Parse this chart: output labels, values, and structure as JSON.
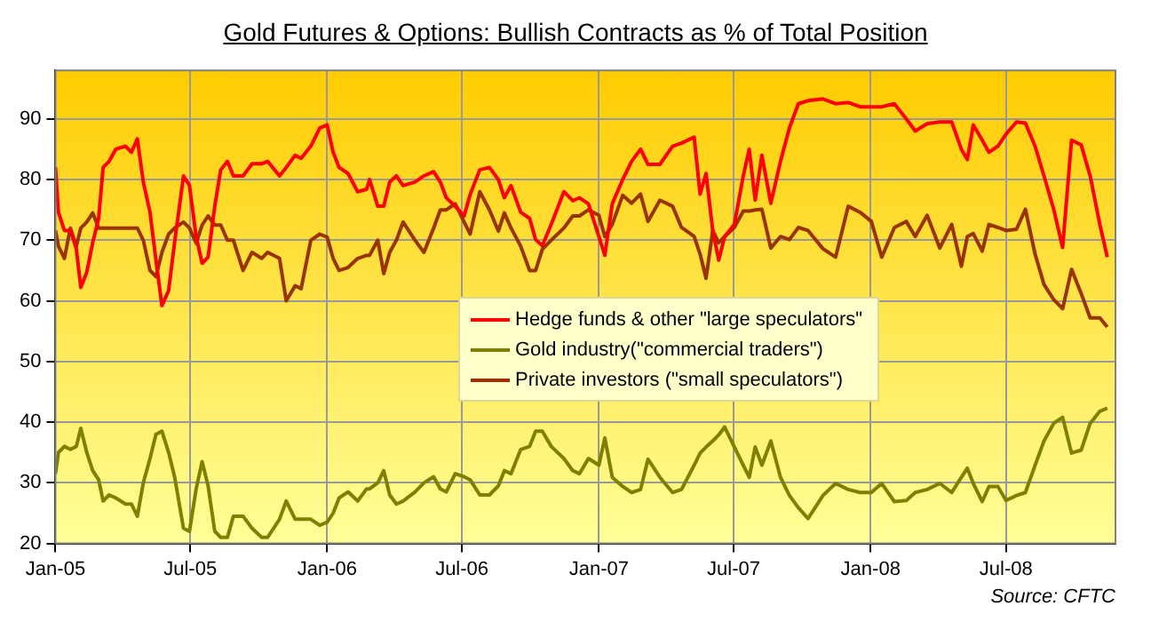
{
  "chart_data": {
    "type": "line",
    "title": "Gold Futures & Options: Bullish Contracts as % of Total Position",
    "x": [
      "2005-01-01",
      "2005-01-05",
      "2005-01-13",
      "2005-01-21",
      "2005-01-29",
      "2005-02-04",
      "2005-02-12",
      "2005-02-20",
      "2005-02-28",
      "2005-03-06",
      "2005-03-14",
      "2005-03-23",
      "2005-04-05",
      "2005-04-13",
      "2005-04-21",
      "2005-04-29",
      "2005-05-08",
      "2005-05-16",
      "2005-05-24",
      "2005-06-02",
      "2005-06-10",
      "2005-06-22",
      "2005-06-30",
      "2005-07-09",
      "2005-07-17",
      "2005-07-25",
      "2005-08-03",
      "2005-08-11",
      "2005-08-20",
      "2005-08-28",
      "2005-09-10",
      "2005-09-22",
      "2005-10-05",
      "2005-10-13",
      "2005-10-29",
      "2005-11-07",
      "2005-11-19",
      "2005-11-27",
      "2005-12-10",
      "2005-12-22",
      "2006-01-01",
      "2006-01-09",
      "2006-01-17",
      "2006-01-29",
      "2006-02-11",
      "2006-02-23",
      "2006-02-27",
      "2006-03-10",
      "2006-03-18",
      "2006-03-26",
      "2006-04-04",
      "2006-04-13",
      "2006-04-29",
      "2006-05-11",
      "2006-05-24",
      "2006-06-02",
      "2006-06-10",
      "2006-06-22",
      "2006-07-04",
      "2006-07-12",
      "2006-07-25",
      "2006-08-07",
      "2006-08-19",
      "2006-08-27",
      "2006-09-05",
      "2006-09-18",
      "2006-09-30",
      "2006-10-08",
      "2006-10-17",
      "2006-10-29",
      "2006-11-15",
      "2006-11-27",
      "2006-12-06",
      "2006-12-18",
      "2007-01-01",
      "2007-01-09",
      "2007-01-19",
      "2007-02-02",
      "2007-02-14",
      "2007-02-26",
      "2007-03-08",
      "2007-03-24",
      "2007-04-10",
      "2007-04-22",
      "2007-05-09",
      "2007-05-17",
      "2007-05-25",
      "2007-06-03",
      "2007-06-11",
      "2007-06-19",
      "2007-07-02",
      "2007-07-14",
      "2007-07-22",
      "2007-07-30",
      "2007-08-08",
      "2007-08-20",
      "2007-09-02",
      "2007-09-14",
      "2007-09-26",
      "2007-10-09",
      "2007-10-29",
      "2007-11-15",
      "2007-12-02",
      "2007-12-18",
      "2008-01-02",
      "2008-01-16",
      "2008-02-02",
      "2008-02-18",
      "2008-03-01",
      "2008-03-17",
      "2008-04-03",
      "2008-04-19",
      "2008-05-02",
      "2008-05-10",
      "2008-05-18",
      "2008-05-30",
      "2008-06-08",
      "2008-06-20",
      "2008-07-01",
      "2008-07-15",
      "2008-07-27",
      "2008-08-09",
      "2008-08-21",
      "2008-09-03",
      "2008-09-15",
      "2008-09-27",
      "2008-10-10",
      "2008-10-22",
      "2008-11-04",
      "2008-11-14"
    ],
    "series": [
      {
        "name": "Hedge funds & other \"large speculators\"",
        "color": "#ff0000",
        "values": [
          82,
          74.6,
          71.6,
          71.6,
          68.6,
          62.2,
          64.7,
          69.6,
          73.6,
          82,
          83,
          85,
          85.5,
          84.5,
          86.7,
          79.6,
          74.6,
          66.7,
          59.2,
          61.7,
          69.6,
          80.6,
          79,
          70.6,
          66.2,
          67.2,
          75.6,
          81.6,
          83,
          80.6,
          80.6,
          82.6,
          82.6,
          83,
          80.6,
          82,
          84,
          83.5,
          85.5,
          88.5,
          89,
          84.5,
          82,
          81,
          78,
          78.4,
          80,
          75.6,
          75.6,
          79.6,
          80.6,
          79,
          79.6,
          80.6,
          81.3,
          79.6,
          77,
          75.6,
          74,
          77.5,
          81.6,
          82,
          80,
          77,
          79,
          74.6,
          73.6,
          70.1,
          69.1,
          72.6,
          78,
          76.5,
          77,
          76,
          70.6,
          67.5,
          76,
          80,
          83,
          85,
          82.5,
          82.5,
          85.5,
          86,
          87,
          77.6,
          81,
          71.6,
          66.7,
          70.6,
          72.6,
          80.6,
          85,
          76.6,
          84,
          76.1,
          83,
          88.5,
          92.5,
          93,
          93.3,
          92.5,
          92.7,
          92,
          92,
          92,
          92.5,
          90,
          88,
          89.2,
          89.5,
          89.5,
          85,
          83.3,
          89,
          86.5,
          84.5,
          85.5,
          87.5,
          89.5,
          89.3,
          85.5,
          80.6,
          75.1,
          68.8,
          86.5,
          85.7,
          80.6,
          72.6,
          67.2
        ]
      },
      {
        "name": "Gold industry(\"commercial traders\")",
        "color": "#808000",
        "values": [
          31.5,
          35,
          36,
          35.5,
          36,
          39,
          35,
          32,
          30.5,
          27,
          28,
          27.5,
          26.5,
          26.5,
          24.5,
          30,
          34,
          38,
          38.5,
          35,
          31,
          22.5,
          22,
          29,
          33.5,
          29.5,
          22,
          21,
          21,
          24.5,
          24.5,
          22.5,
          21,
          21,
          24,
          27,
          24,
          24,
          24,
          23,
          23.5,
          25,
          27.5,
          28.5,
          27,
          29,
          29,
          30,
          32,
          28,
          26.5,
          27,
          28.5,
          30,
          31,
          29,
          28.5,
          31.5,
          31,
          30.5,
          28,
          28,
          29.5,
          32,
          31.5,
          35.5,
          36,
          38.5,
          38.5,
          36,
          34,
          32,
          31.5,
          34,
          32.9,
          37.4,
          30.9,
          29.4,
          28.4,
          28.9,
          33.9,
          30.9,
          28.4,
          28.9,
          32.9,
          34.9,
          35.9,
          36.9,
          37.9,
          39.2,
          35.9,
          32.9,
          30.9,
          35.9,
          32.9,
          36.9,
          30.9,
          27.9,
          25.9,
          24.1,
          27.9,
          29.9,
          28.9,
          28.4,
          28.4,
          29.9,
          26.9,
          27.1,
          28.4,
          28.9,
          29.9,
          28.4,
          30.9,
          32.4,
          29.9,
          26.9,
          29.4,
          29.4,
          27.1,
          27.9,
          28.4,
          32.9,
          36.9,
          39.8,
          40.8,
          34.9,
          35.4,
          39.8,
          41.8,
          42.3
        ]
      },
      {
        "name": "Private investors (\"small speculators\")",
        "color": "#993300",
        "values": [
          71.6,
          69,
          67,
          72,
          69,
          72,
          73,
          74.5,
          72,
          72,
          72,
          72,
          72,
          72,
          72,
          70,
          65,
          64,
          68,
          71,
          72,
          73,
          72,
          69.5,
          72.5,
          74,
          72.5,
          72.5,
          70,
          70,
          65,
          68,
          67,
          68,
          67,
          60,
          62.5,
          62,
          70,
          71,
          70.5,
          67,
          65,
          65.5,
          67,
          67.5,
          67.5,
          70,
          64.5,
          68,
          70,
          73,
          70,
          68,
          72,
          75,
          75,
          76,
          73,
          71,
          78,
          75,
          71.5,
          74.5,
          72,
          69,
          65,
          65,
          68.5,
          70,
          72,
          74,
          74,
          75,
          74.1,
          70.6,
          72.6,
          77.4,
          76.1,
          77.6,
          73.1,
          76.6,
          75.6,
          72.1,
          70.6,
          67.7,
          63.7,
          71.6,
          69.6,
          70.6,
          72.1,
          74.8,
          74.8,
          75,
          75.1,
          68.7,
          70.6,
          70.1,
          72.1,
          71.6,
          68.6,
          67.2,
          75.6,
          74.6,
          73.1,
          67.2,
          72.1,
          73.1,
          70.6,
          74.1,
          68.7,
          72.6,
          65.7,
          70.6,
          71.1,
          68.2,
          72.6,
          72.1,
          71.6,
          71.8,
          75.1,
          67.7,
          62.7,
          60.2,
          58.7,
          65.2,
          61.2,
          57.2,
          57.2,
          55.7
        ]
      }
    ],
    "xlim": [
      "2005-01-01",
      "2008-11-25"
    ],
    "xticks": [
      {
        "value": "2005-01-01",
        "label": "Jan-05"
      },
      {
        "value": "2005-07-01",
        "label": "Jul-05"
      },
      {
        "value": "2006-01-01",
        "label": "Jan-06"
      },
      {
        "value": "2006-07-01",
        "label": "Jul-06"
      },
      {
        "value": "2007-01-01",
        "label": "Jan-07"
      },
      {
        "value": "2007-07-01",
        "label": "Jul-07"
      },
      {
        "value": "2008-01-01",
        "label": "Jan-08"
      },
      {
        "value": "2008-07-01",
        "label": "Jul-08"
      }
    ],
    "ylim": [
      20,
      98
    ],
    "yticks": [
      20,
      30,
      40,
      50,
      60,
      70,
      80,
      90
    ],
    "grid": true,
    "legend": "right",
    "marker": "none",
    "line_style": "solid",
    "annotations": [
      "Source: CFTC"
    ]
  }
}
